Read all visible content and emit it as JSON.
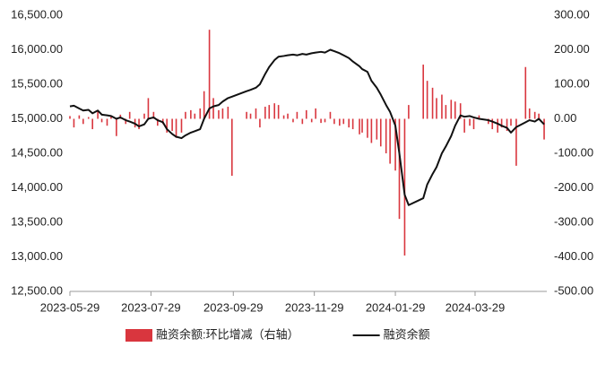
{
  "chart_data": {
    "type": "combo",
    "x": [
      "2023-05-29",
      "2023-06-01",
      "2023-06-05",
      "2023-06-08",
      "2023-06-12",
      "2023-06-15",
      "2023-06-19",
      "2023-06-22",
      "2023-06-26",
      "2023-06-29",
      "2023-07-03",
      "2023-07-06",
      "2023-07-10",
      "2023-07-13",
      "2023-07-17",
      "2023-07-20",
      "2023-07-24",
      "2023-07-27",
      "2023-07-31",
      "2023-08-03",
      "2023-08-07",
      "2023-08-10",
      "2023-08-14",
      "2023-08-17",
      "2023-08-21",
      "2023-08-24",
      "2023-08-28",
      "2023-08-31",
      "2023-09-04",
      "2023-09-07",
      "2023-09-11",
      "2023-09-14",
      "2023-09-18",
      "2023-09-21",
      "2023-09-25",
      "2023-09-28",
      "2023-10-09",
      "2023-10-12",
      "2023-10-16",
      "2023-10-19",
      "2023-10-23",
      "2023-10-26",
      "2023-10-30",
      "2023-11-02",
      "2023-11-06",
      "2023-11-09",
      "2023-11-13",
      "2023-11-16",
      "2023-11-20",
      "2023-11-23",
      "2023-11-27",
      "2023-11-30",
      "2023-12-04",
      "2023-12-07",
      "2023-12-11",
      "2023-12-14",
      "2023-12-18",
      "2023-12-21",
      "2023-12-25",
      "2023-12-28",
      "2024-01-02",
      "2024-01-04",
      "2024-01-08",
      "2024-01-11",
      "2024-01-15",
      "2024-01-18",
      "2024-01-22",
      "2024-01-25",
      "2024-01-29",
      "2024-02-01",
      "2024-02-05",
      "2024-02-08",
      "2024-02-19",
      "2024-02-22",
      "2024-02-26",
      "2024-02-29",
      "2024-03-04",
      "2024-03-07",
      "2024-03-11",
      "2024-03-14",
      "2024-03-18",
      "2024-03-21",
      "2024-03-25",
      "2024-03-28",
      "2024-04-01",
      "2024-04-08",
      "2024-04-11",
      "2024-04-15",
      "2024-04-18",
      "2024-04-22",
      "2024-04-25",
      "2024-04-29",
      "2024-05-06",
      "2024-05-09",
      "2024-05-13",
      "2024-05-16",
      "2024-05-20"
    ],
    "series": [
      {
        "name": "融资余额:环比增减（右轴）",
        "type": "bar",
        "axis": "y2",
        "color": "#d9363e",
        "values": [
          8,
          -25,
          10,
          -15,
          5,
          -30,
          25,
          -10,
          -20,
          8,
          -50,
          12,
          -15,
          20,
          -25,
          -30,
          15,
          60,
          20,
          -20,
          -15,
          -40,
          -35,
          -55,
          -40,
          20,
          25,
          15,
          30,
          80,
          258,
          60,
          25,
          30,
          35,
          -165,
          20,
          15,
          30,
          -25,
          35,
          40,
          45,
          40,
          10,
          15,
          -10,
          20,
          -15,
          25,
          -10,
          30,
          -12,
          -10,
          20,
          -15,
          -20,
          -15,
          -25,
          -30,
          -45,
          -40,
          -55,
          -70,
          -60,
          -80,
          -100,
          -130,
          -150,
          -290,
          -396,
          40,
          157,
          110,
          90,
          60,
          70,
          40,
          55,
          50,
          45,
          -40,
          -20,
          -30,
          10,
          -15,
          -30,
          -40,
          -25,
          -35,
          -20,
          -136,
          150,
          30,
          20,
          15,
          -60
        ]
      },
      {
        "name": "融资余额",
        "type": "line",
        "axis": "y",
        "color": "#111111",
        "values": [
          15180,
          15190,
          15150,
          15120,
          15130,
          15080,
          15120,
          15060,
          15050,
          15040,
          15000,
          15020,
          14980,
          14960,
          14930,
          14890,
          14920,
          15000,
          15020,
          14980,
          14950,
          14850,
          14780,
          14740,
          14720,
          14760,
          14800,
          14820,
          14850,
          15000,
          15150,
          15180,
          15200,
          15250,
          15300,
          15320,
          15400,
          15420,
          15450,
          15500,
          15650,
          15750,
          15850,
          15900,
          15910,
          15920,
          15930,
          15920,
          15940,
          15930,
          15950,
          15960,
          15970,
          15960,
          16000,
          15980,
          15950,
          15920,
          15880,
          15830,
          15760,
          15720,
          15680,
          15550,
          15450,
          15350,
          15200,
          15100,
          14900,
          14500,
          13900,
          13750,
          13850,
          14050,
          14200,
          14300,
          14500,
          14600,
          14750,
          14900,
          15050,
          15030,
          15040,
          15020,
          15000,
          14980,
          14960,
          14930,
          14900,
          14870,
          14800,
          14880,
          14950,
          14980,
          14960,
          15000,
          14920
        ]
      }
    ],
    "xlim": [
      "2023-05-29",
      "2024-05-22"
    ],
    "xticks": [
      "2023-05-29",
      "2023-07-29",
      "2023-09-29",
      "2023-11-29",
      "2024-01-29",
      "2024-03-29"
    ],
    "ylim": [
      12500,
      16500
    ],
    "yticks": [
      {
        "value": 12500,
        "label": "12,500.00"
      },
      {
        "value": 13000,
        "label": "13,000.00"
      },
      {
        "value": 13500,
        "label": "13,500.00"
      },
      {
        "value": 14000,
        "label": "14,000.00"
      },
      {
        "value": 14500,
        "label": "14,500.00"
      },
      {
        "value": 15000,
        "label": "15,000.00"
      },
      {
        "value": 15500,
        "label": "15,500.00"
      },
      {
        "value": 16000,
        "label": "16,000.00"
      },
      {
        "value": 16500,
        "label": "16,500.00"
      }
    ],
    "y2lim": [
      -500,
      300
    ],
    "y2ticks": [
      {
        "value": -500,
        "label": "-500.00"
      },
      {
        "value": -400,
        "label": "-400.00"
      },
      {
        "value": -300,
        "label": "-300.00"
      },
      {
        "value": -200,
        "label": "-200.00"
      },
      {
        "value": -100,
        "label": "-100.00"
      },
      {
        "value": 0,
        "label": "0.00"
      },
      {
        "value": 100,
        "label": "100.00"
      },
      {
        "value": 200,
        "label": "200.00"
      },
      {
        "value": 300,
        "label": "300.00"
      }
    ],
    "legend": "bottom"
  }
}
